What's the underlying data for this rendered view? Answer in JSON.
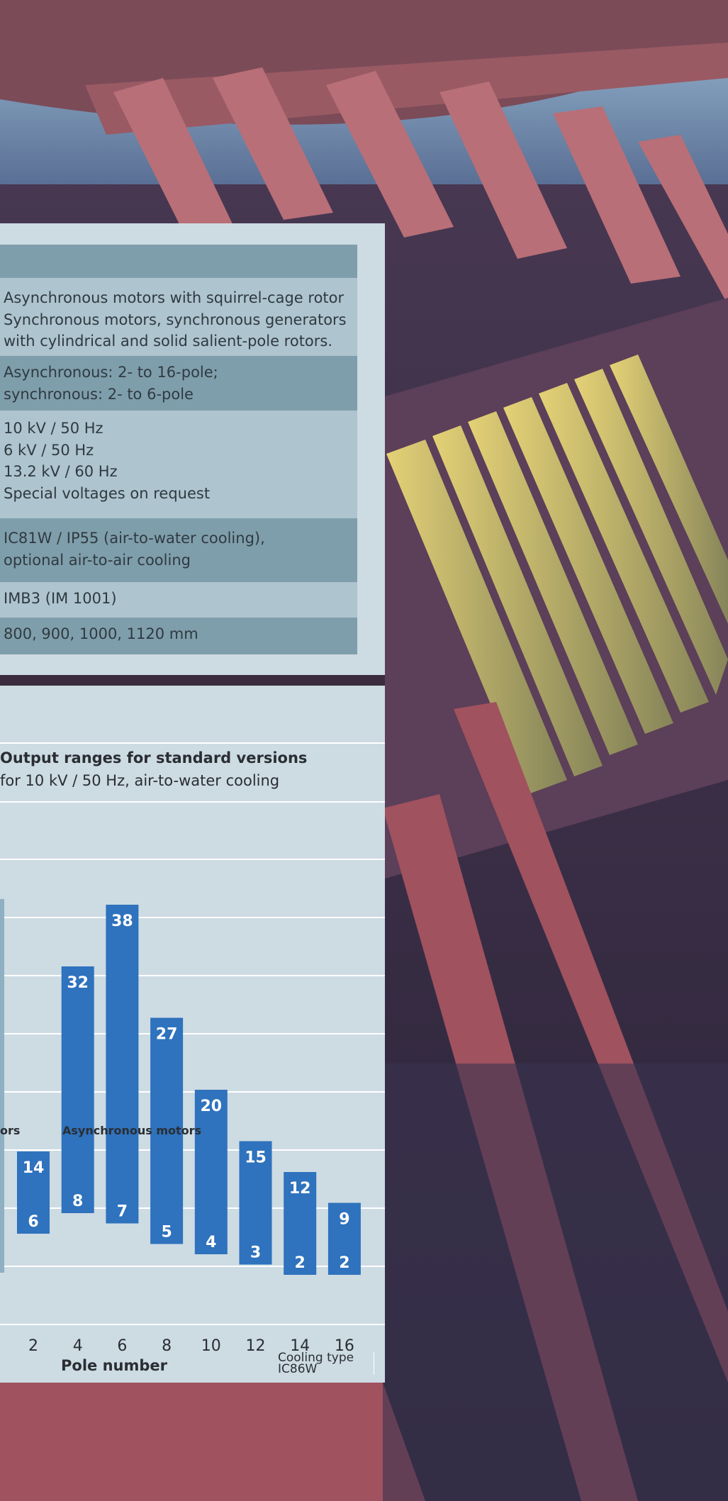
{
  "spec_table": {
    "rows": [
      {
        "style": "dark",
        "lines": []
      },
      {
        "style": "light",
        "lines": [
          "Asynchronous motors with squirrel-cage rotor",
          "Synchronous motors, synchronous generators",
          "with cylindrical and solid salient-pole rotors."
        ]
      },
      {
        "style": "dark",
        "lines": [
          "Asynchronous: 2- to 16-pole;",
          "synchronous: 2- to 6-pole"
        ]
      },
      {
        "style": "light",
        "lines": [
          "10 kV / 50 Hz",
          "6 kV / 50 Hz",
          "13.2 kV / 60 Hz",
          "Special voltages on request"
        ]
      },
      {
        "style": "dark",
        "lines": [
          "IC81W / IP55 (air-to-water cooling),",
          "optional air-to-air cooling"
        ]
      },
      {
        "style": "light",
        "lines": [
          "IMB3 (IM 1001)"
        ]
      },
      {
        "style": "dark",
        "lines": [
          "800, 900, 1000, 1120 mm"
        ]
      }
    ]
  },
  "chart_data": {
    "type": "bar",
    "title": "Output ranges for standard versions",
    "subtitle": "for 10 kV / 50 Hz, air-to-water cooling",
    "xlabel": "Pole number",
    "x_ticks": [
      "2",
      "4",
      "6",
      "8",
      "10",
      "12",
      "14",
      "16"
    ],
    "series": [
      {
        "name": "Asynchronous motors",
        "categories": [
          "2",
          "4",
          "6",
          "8",
          "10",
          "12",
          "14",
          "16"
        ],
        "low": [
          6,
          8,
          7,
          5,
          4,
          3,
          2,
          2
        ],
        "high": [
          14,
          32,
          38,
          27,
          20,
          15,
          12,
          9
        ],
        "color": "#2f72bd"
      }
    ],
    "partial_series_label": "ors",
    "y_range": [
      0,
      40
    ],
    "grid": true,
    "cooling_note": [
      "Cooling type",
      "IC86W"
    ]
  },
  "colors": {
    "panel": "#cddbe3",
    "bar": "#2f72bd",
    "grid": "#ffffff"
  }
}
